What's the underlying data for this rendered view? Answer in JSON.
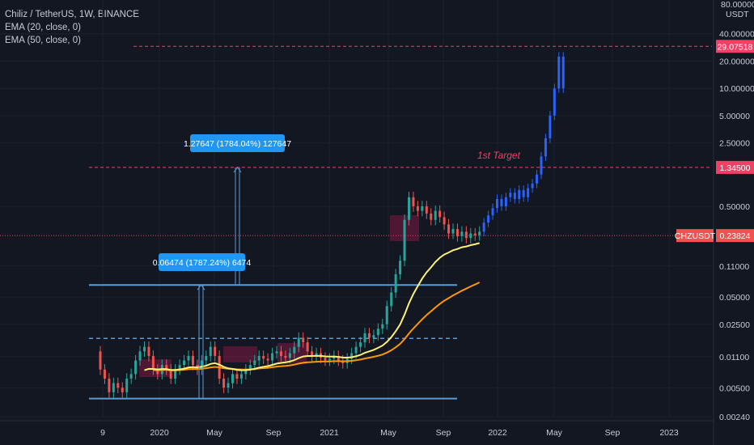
{
  "legend": {
    "symbol_line": "Chiliz / TetherUS, 1W, BINANCE",
    "ema20_line": "EMA (20, close, 0)",
    "ema50_line": "EMA (50, close, 0)"
  },
  "price_axis": {
    "unit": "USDT",
    "top_partial": "80.00000",
    "ticks": [
      "40.00000",
      "20.00000",
      "10.00000",
      "5.00000",
      "2.50000",
      "0.50000",
      "0.11000",
      "0.05000",
      "0.02500",
      "0.01100",
      "0.00500",
      "0.00240"
    ]
  },
  "time_axis": {
    "ticks": [
      "9",
      "2020",
      "May",
      "Sep",
      "2021",
      "May",
      "Sep",
      "2022",
      "May",
      "Sep",
      "2023"
    ]
  },
  "annotations": {
    "first_target_label": "1st Target",
    "measure_1": "0.06474 (1787.24%) 6474",
    "measure_2": "1.27647 (1784.04%) 127647"
  },
  "price_badges": {
    "high": "29.07518",
    "target": "1.34500",
    "symbol": "CHZUSDT",
    "last": "0.23824"
  },
  "colors": {
    "background": "#131722",
    "up": "#26a69a",
    "down": "#ef5350",
    "projection": "#2962ff",
    "ema20": "#fff176",
    "ema50": "#ff9800",
    "level_line": "#5b9bd5",
    "target_line": "#f23f66"
  },
  "chart_data": {
    "type": "candlestick",
    "title": "Chiliz / TetherUS, 1W, BINANCE",
    "y_scale": "log",
    "ylim": [
      0.0024,
      80
    ],
    "x_range": [
      "2019-08",
      "2023-03"
    ],
    "weeks_per_candle": 1,
    "levels": {
      "high_mark": 29.07518,
      "first_target": 1.345,
      "breakout_level": 0.068,
      "dashed_support": 0.0175,
      "base_support": 0.0038,
      "last_price": 0.23824
    },
    "candles_log10": [
      [
        -1.9,
        -2.1
      ],
      [
        -2.1,
        -2.2
      ],
      [
        -2.2,
        -2.35
      ],
      [
        -2.35,
        -2.25
      ],
      [
        -2.25,
        -2.3
      ],
      [
        -2.3,
        -2.35
      ],
      [
        -2.35,
        -2.2
      ],
      [
        -2.2,
        -2.15
      ],
      [
        -2.15,
        -2.0
      ],
      [
        -2.0,
        -1.9
      ],
      [
        -1.9,
        -1.85
      ],
      [
        -1.85,
        -1.95
      ],
      [
        -1.95,
        -2.1
      ],
      [
        -2.1,
        -2.15
      ],
      [
        -2.15,
        -2.05
      ],
      [
        -2.05,
        -2.1
      ],
      [
        -2.1,
        -2.2
      ],
      [
        -2.2,
        -2.1
      ],
      [
        -2.1,
        -2.05
      ],
      [
        -2.05,
        -2.0
      ],
      [
        -2.0,
        -1.95
      ],
      [
        -1.95,
        -2.05
      ],
      [
        -2.05,
        -2.1
      ],
      [
        -2.1,
        -2.0
      ],
      [
        -2.0,
        -1.95
      ],
      [
        -1.95,
        -1.85
      ],
      [
        -1.85,
        -1.95
      ],
      [
        -1.95,
        -2.2
      ],
      [
        -2.2,
        -2.3
      ],
      [
        -2.3,
        -2.25
      ],
      [
        -2.25,
        -2.15
      ],
      [
        -2.15,
        -2.2
      ],
      [
        -2.2,
        -2.15
      ],
      [
        -2.15,
        -2.1
      ],
      [
        -2.1,
        -2.05
      ],
      [
        -2.05,
        -2.0
      ],
      [
        -2.0,
        -1.95
      ],
      [
        -1.95,
        -1.98
      ],
      [
        -1.98,
        -2.0
      ],
      [
        -2.0,
        -1.92
      ],
      [
        -1.92,
        -1.9
      ],
      [
        -1.9,
        -1.95
      ],
      [
        -1.95,
        -1.97
      ],
      [
        -1.97,
        -1.92
      ],
      [
        -1.92,
        -1.85
      ],
      [
        -1.85,
        -1.75
      ],
      [
        -1.75,
        -1.8
      ],
      [
        -1.8,
        -1.9
      ],
      [
        -1.9,
        -1.95
      ],
      [
        -1.95,
        -1.92
      ],
      [
        -1.92,
        -1.97
      ],
      [
        -1.97,
        -2.0
      ],
      [
        -2.0,
        -1.98
      ],
      [
        -1.98,
        -1.95
      ],
      [
        -1.95,
        -2.0
      ],
      [
        -2.0,
        -2.03
      ],
      [
        -2.03,
        -1.98
      ],
      [
        -1.98,
        -1.92
      ],
      [
        -1.92,
        -1.85
      ],
      [
        -1.85,
        -1.8
      ],
      [
        -1.8,
        -1.7
      ],
      [
        -1.7,
        -1.75
      ],
      [
        -1.75,
        -1.72
      ],
      [
        -1.72,
        -1.65
      ],
      [
        -1.65,
        -1.6
      ],
      [
        -1.6,
        -1.4
      ],
      [
        -1.4,
        -1.25
      ],
      [
        -1.25,
        -1.05
      ],
      [
        -1.05,
        -0.9
      ],
      [
        -0.9,
        -0.45
      ],
      [
        -0.45,
        -0.2
      ],
      [
        -0.2,
        -0.3
      ],
      [
        -0.3,
        -0.35
      ],
      [
        -0.35,
        -0.3
      ],
      [
        -0.3,
        -0.38
      ],
      [
        -0.38,
        -0.45
      ],
      [
        -0.45,
        -0.35
      ],
      [
        -0.35,
        -0.42
      ],
      [
        -0.42,
        -0.5
      ],
      [
        -0.5,
        -0.6
      ],
      [
        -0.6,
        -0.55
      ],
      [
        -0.55,
        -0.63
      ],
      [
        -0.63,
        -0.58
      ],
      [
        -0.58,
        -0.65
      ],
      [
        -0.65,
        -0.6
      ],
      [
        -0.6,
        -0.62
      ],
      [
        -0.62,
        -0.58
      ]
    ],
    "projection_log10": [
      [
        -0.58,
        -0.48
      ],
      [
        -0.48,
        -0.4
      ],
      [
        -0.4,
        -0.32
      ],
      [
        -0.32,
        -0.22
      ],
      [
        -0.22,
        -0.3
      ],
      [
        -0.3,
        -0.2
      ],
      [
        -0.2,
        -0.15
      ],
      [
        -0.15,
        -0.22
      ],
      [
        -0.22,
        -0.12
      ],
      [
        -0.12,
        -0.2
      ],
      [
        -0.2,
        -0.1
      ],
      [
        -0.1,
        -0.05
      ],
      [
        -0.05,
        0.05
      ],
      [
        0.05,
        0.25
      ],
      [
        0.25,
        0.45
      ],
      [
        0.45,
        0.7
      ],
      [
        0.7,
        1.0
      ],
      [
        1.0,
        1.35
      ],
      [
        1.35,
        1.0
      ]
    ]
  }
}
